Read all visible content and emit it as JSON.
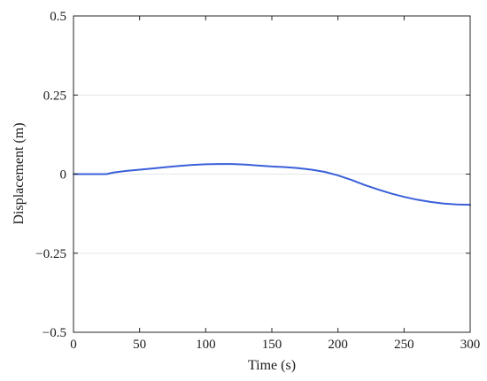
{
  "chart_data": {
    "type": "line",
    "title": "",
    "xlabel": "Time (s)",
    "ylabel": "Displacement (m)",
    "xlim": [
      0,
      300
    ],
    "ylim": [
      -0.5,
      0.5
    ],
    "xticks": [
      0,
      50,
      100,
      150,
      200,
      250,
      300
    ],
    "xtick_labels": [
      "0",
      "50",
      "100",
      "150",
      "200",
      "250",
      "300"
    ],
    "yticks": [
      -0.5,
      -0.25,
      0,
      0.25,
      0.5
    ],
    "ytick_labels": [
      "−0.5",
      "−0.25",
      "0",
      "0.25",
      "0.5"
    ],
    "grid": "horizontal",
    "legend": "none",
    "series": [
      {
        "color": "#3a5fd9",
        "x": [
          0,
          10,
          20,
          25,
          30,
          40,
          50,
          60,
          70,
          80,
          90,
          100,
          110,
          120,
          130,
          140,
          150,
          160,
          170,
          180,
          190,
          200,
          210,
          220,
          230,
          240,
          250,
          260,
          270,
          280,
          290,
          300
        ],
        "y": [
          0,
          0,
          0,
          0,
          0.005,
          0.01,
          0.014,
          0.018,
          0.022,
          0.026,
          0.029,
          0.031,
          0.032,
          0.032,
          0.03,
          0.027,
          0.024,
          0.022,
          0.019,
          0.014,
          0.007,
          -0.004,
          -0.018,
          -0.034,
          -0.048,
          -0.061,
          -0.072,
          -0.081,
          -0.088,
          -0.093,
          -0.096,
          -0.097
        ]
      }
    ]
  }
}
